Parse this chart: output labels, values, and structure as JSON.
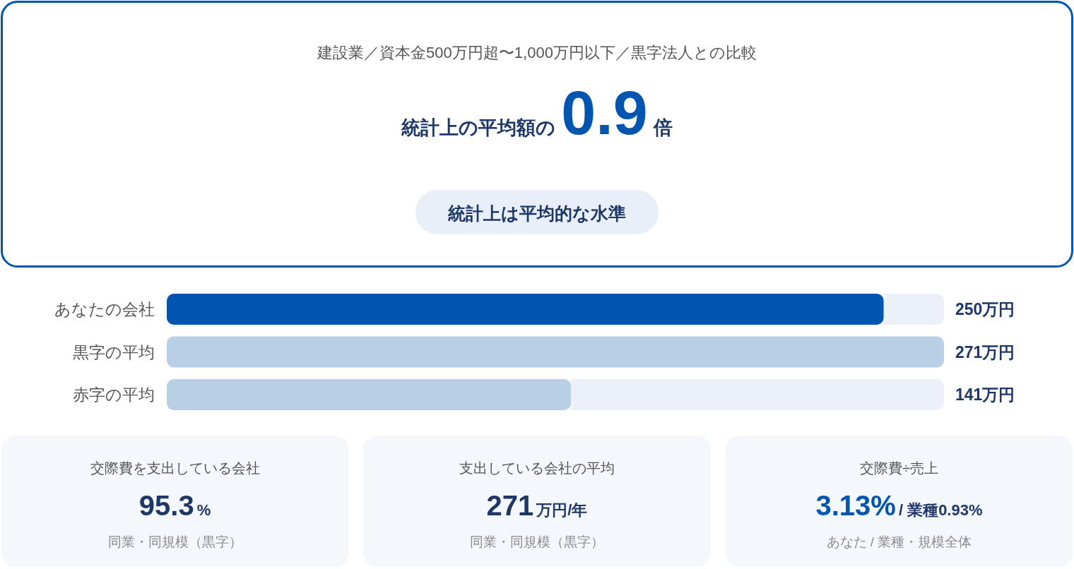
{
  "chart_data": [
    {
      "type": "other",
      "title": "建設業／資本金500万円超〜1,000万円以下／黒字法人との比較",
      "color": "#0055b1",
      "annotations": [
        "統計上の平均額の",
        "0.9",
        "倍",
        "統計上は平均的な水準"
      ]
    },
    {
      "type": "bar",
      "orientation": "horizontal",
      "stacked": true,
      "categories": [
        "あなたの会社",
        "黒字の平均",
        "赤字の平均"
      ],
      "series": [
        {
          "colors": [
            "#0055b1",
            "#b9cfe6",
            "#b9cfe6"
          ],
          "values": [
            250,
            271,
            141
          ],
          "value_labels": [
            "250万円",
            "271万円",
            "141万円"
          ]
        },
        {
          "color": "#ecf1f8",
          "values": [
            21,
            0,
            130
          ]
        }
      ],
      "xlim": [
        0,
        271
      ],
      "tick_labels": "y"
    },
    {
      "type": "other",
      "title": "交際費を支出している会社",
      "color": "#1d3767",
      "annotations": [
        "95.3",
        "%"
      ],
      "subtitle": "同業・同規模（黒字）"
    },
    {
      "type": "other",
      "title": "支出している会社の平均",
      "color": "#1d3767",
      "annotations": [
        "271",
        "万円/年"
      ],
      "subtitle": "同業・同規模（黒字）"
    },
    {
      "type": "other",
      "title": "交際費÷売上",
      "color": "#0055b1",
      "annotations": [
        "3.13%",
        "/ 業種0.93%"
      ],
      "subtitle": "あなた / 業種・規模全体"
    }
  ]
}
